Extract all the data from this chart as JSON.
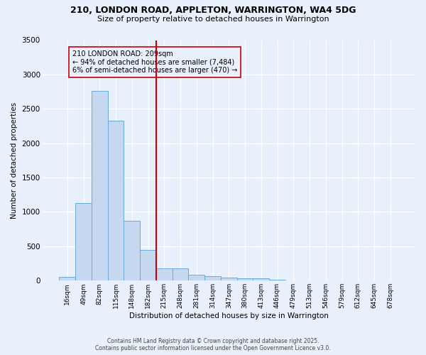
{
  "title_line1": "210, LONDON ROAD, APPLETON, WARRINGTON, WA4 5DG",
  "title_line2": "Size of property relative to detached houses in Warrington",
  "xlabel": "Distribution of detached houses by size in Warrington",
  "ylabel": "Number of detached properties",
  "categories": [
    "16sqm",
    "49sqm",
    "82sqm",
    "115sqm",
    "148sqm",
    "182sqm",
    "215sqm",
    "248sqm",
    "281sqm",
    "314sqm",
    "347sqm",
    "380sqm",
    "413sqm",
    "446sqm",
    "479sqm",
    "513sqm",
    "546sqm",
    "579sqm",
    "612sqm",
    "645sqm",
    "678sqm"
  ],
  "values": [
    50,
    1130,
    2760,
    2330,
    870,
    450,
    175,
    175,
    90,
    65,
    45,
    35,
    30,
    10,
    5,
    3,
    2,
    1,
    0,
    0,
    0
  ],
  "bar_color": "#c5d8f0",
  "bar_edge_color": "#6aaad4",
  "vline_color": "#cc0000",
  "annotation_text": "210 LONDON ROAD: 209sqm\n← 94% of detached houses are smaller (7,484)\n6% of semi-detached houses are larger (470) →",
  "annotation_box_color": "#cc0000",
  "background_color": "#e8f0fc",
  "grid_color": "#ffffff",
  "ylim": [
    0,
    3500
  ],
  "yticks": [
    0,
    500,
    1000,
    1500,
    2000,
    2500,
    3000,
    3500
  ],
  "footer_line1": "Contains HM Land Registry data © Crown copyright and database right 2025.",
  "footer_line2": "Contains public sector information licensed under the Open Government Licence v3.0."
}
